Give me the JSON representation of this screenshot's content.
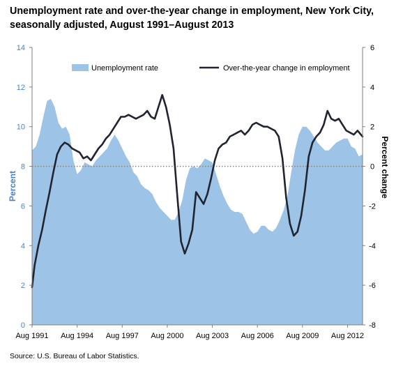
{
  "title_line1": "Unemployment rate and over-the-year change in employment, New York City,",
  "title_line2": "seasonally adjusted, August 1991–August 2013",
  "source": "Source: U.S. Bureau of Labor Statistics.",
  "colors": {
    "area": "#9dc3e6",
    "line": "#1f2430",
    "left_axis_text": "#4f81bd",
    "zero_line": "#7f7f7f"
  },
  "chart_data": {
    "type": "area",
    "title": "Unemployment rate and over-the-year change in employment, New York City, seasonally adjusted, August 1991–August 2013",
    "x_range": [
      "1991-08",
      "2013-08"
    ],
    "x_tick_labels": [
      "Aug 1991",
      "Aug 1994",
      "Aug 1997",
      "Aug 2000",
      "Aug 2003",
      "Aug 2006",
      "Aug 2009",
      "Aug 2012"
    ],
    "x_tick_dates": [
      "1991-08",
      "1994-08",
      "1997-08",
      "2000-08",
      "2003-08",
      "2006-08",
      "2009-08",
      "2012-08"
    ],
    "y_left": {
      "label": "Percent",
      "range": [
        0,
        14
      ],
      "ticks": [
        "0",
        "2",
        "4",
        "6",
        "8",
        "10",
        "12",
        "14"
      ]
    },
    "y_right": {
      "label": "Percent change",
      "range": [
        -8,
        6
      ],
      "ticks": [
        "-8",
        "-6",
        "-4",
        "-2",
        "0",
        "2",
        "4",
        "6"
      ]
    },
    "grid": false,
    "legend_position": "top",
    "reference_line": {
      "axis": "right",
      "value": 0,
      "style": "dotted"
    },
    "series": [
      {
        "name": "Unemployment rate",
        "type": "area",
        "axis": "left",
        "points": [
          [
            "1991-08",
            8.8
          ],
          [
            "1991-11",
            9.0
          ],
          [
            "1992-02",
            9.6
          ],
          [
            "1992-05",
            10.5
          ],
          [
            "1992-08",
            11.3
          ],
          [
            "1992-11",
            11.4
          ],
          [
            "1993-02",
            11.0
          ],
          [
            "1993-05",
            10.2
          ],
          [
            "1993-08",
            9.9
          ],
          [
            "1993-11",
            10.0
          ],
          [
            "1994-02",
            9.6
          ],
          [
            "1994-05",
            8.3
          ],
          [
            "1994-08",
            7.6
          ],
          [
            "1994-11",
            7.8
          ],
          [
            "1995-02",
            8.2
          ],
          [
            "1995-05",
            8.1
          ],
          [
            "1995-08",
            8.0
          ],
          [
            "1995-11",
            8.3
          ],
          [
            "1996-02",
            8.5
          ],
          [
            "1996-05",
            8.7
          ],
          [
            "1996-08",
            8.9
          ],
          [
            "1996-11",
            9.3
          ],
          [
            "1997-02",
            9.6
          ],
          [
            "1997-05",
            9.3
          ],
          [
            "1997-08",
            8.9
          ],
          [
            "1997-11",
            8.5
          ],
          [
            "1998-02",
            8.2
          ],
          [
            "1998-05",
            7.7
          ],
          [
            "1998-08",
            7.5
          ],
          [
            "1998-11",
            7.1
          ],
          [
            "1999-02",
            6.9
          ],
          [
            "1999-05",
            6.8
          ],
          [
            "1999-08",
            6.6
          ],
          [
            "1999-11",
            6.2
          ],
          [
            "2000-02",
            5.9
          ],
          [
            "2000-05",
            5.7
          ],
          [
            "2000-08",
            5.5
          ],
          [
            "2000-11",
            5.3
          ],
          [
            "2001-02",
            5.3
          ],
          [
            "2001-05",
            5.7
          ],
          [
            "2001-08",
            6.3
          ],
          [
            "2001-11",
            7.3
          ],
          [
            "2002-02",
            7.9
          ],
          [
            "2002-05",
            8.0
          ],
          [
            "2002-08",
            7.9
          ],
          [
            "2002-11",
            8.1
          ],
          [
            "2003-02",
            8.4
          ],
          [
            "2003-05",
            8.3
          ],
          [
            "2003-08",
            8.2
          ],
          [
            "2003-11",
            7.6
          ],
          [
            "2004-02",
            7.0
          ],
          [
            "2004-05",
            6.5
          ],
          [
            "2004-08",
            6.1
          ],
          [
            "2004-11",
            5.8
          ],
          [
            "2005-02",
            5.7
          ],
          [
            "2005-05",
            5.7
          ],
          [
            "2005-08",
            5.6
          ],
          [
            "2005-11",
            5.2
          ],
          [
            "2006-02",
            4.8
          ],
          [
            "2006-05",
            4.6
          ],
          [
            "2006-08",
            4.7
          ],
          [
            "2006-11",
            5.0
          ],
          [
            "2007-02",
            5.0
          ],
          [
            "2007-05",
            4.8
          ],
          [
            "2007-08",
            4.7
          ],
          [
            "2007-11",
            4.9
          ],
          [
            "2008-02",
            5.3
          ],
          [
            "2008-05",
            5.8
          ],
          [
            "2008-08",
            6.5
          ],
          [
            "2008-11",
            7.7
          ],
          [
            "2009-02",
            8.8
          ],
          [
            "2009-05",
            9.6
          ],
          [
            "2009-08",
            10.0
          ],
          [
            "2009-11",
            10.0
          ],
          [
            "2010-02",
            9.8
          ],
          [
            "2010-05",
            9.5
          ],
          [
            "2010-08",
            9.2
          ],
          [
            "2010-11",
            9.0
          ],
          [
            "2011-02",
            8.8
          ],
          [
            "2011-05",
            8.8
          ],
          [
            "2011-08",
            9.0
          ],
          [
            "2011-11",
            9.2
          ],
          [
            "2012-02",
            9.3
          ],
          [
            "2012-05",
            9.4
          ],
          [
            "2012-08",
            9.4
          ],
          [
            "2012-11",
            9.0
          ],
          [
            "2013-02",
            8.9
          ],
          [
            "2013-05",
            8.5
          ],
          [
            "2013-08",
            8.6
          ]
        ]
      },
      {
        "name": "Over-the-year change in employment",
        "type": "line",
        "axis": "right",
        "points": [
          [
            "1991-08",
            -6.1
          ],
          [
            "1991-10",
            -5.0
          ],
          [
            "1992-01",
            -4.0
          ],
          [
            "1992-04",
            -3.2
          ],
          [
            "1992-07",
            -2.2
          ],
          [
            "1992-10",
            -1.3
          ],
          [
            "1993-01",
            -0.3
          ],
          [
            "1993-04",
            0.6
          ],
          [
            "1993-07",
            1.0
          ],
          [
            "1993-10",
            1.2
          ],
          [
            "1994-01",
            1.1
          ],
          [
            "1994-04",
            0.9
          ],
          [
            "1994-07",
            0.8
          ],
          [
            "1994-10",
            0.7
          ],
          [
            "1995-01",
            0.4
          ],
          [
            "1995-04",
            0.5
          ],
          [
            "1995-07",
            0.3
          ],
          [
            "1995-10",
            0.6
          ],
          [
            "1996-01",
            0.9
          ],
          [
            "1996-04",
            1.1
          ],
          [
            "1996-07",
            1.4
          ],
          [
            "1996-10",
            1.6
          ],
          [
            "1997-01",
            1.9
          ],
          [
            "1997-04",
            2.2
          ],
          [
            "1997-07",
            2.5
          ],
          [
            "1997-10",
            2.5
          ],
          [
            "1998-01",
            2.6
          ],
          [
            "1998-04",
            2.5
          ],
          [
            "1998-07",
            2.4
          ],
          [
            "1998-10",
            2.5
          ],
          [
            "1999-01",
            2.6
          ],
          [
            "1999-04",
            2.8
          ],
          [
            "1999-07",
            2.5
          ],
          [
            "1999-10",
            2.4
          ],
          [
            "2000-01",
            3.0
          ],
          [
            "2000-04",
            3.6
          ],
          [
            "2000-07",
            3.0
          ],
          [
            "2000-10",
            2.1
          ],
          [
            "2001-01",
            0.9
          ],
          [
            "2001-04",
            -1.5
          ],
          [
            "2001-07",
            -3.8
          ],
          [
            "2001-10",
            -4.4
          ],
          [
            "2002-01",
            -3.9
          ],
          [
            "2002-04",
            -3.2
          ],
          [
            "2002-07",
            -1.3
          ],
          [
            "2002-10",
            -1.6
          ],
          [
            "2003-01",
            -1.9
          ],
          [
            "2003-04",
            -1.4
          ],
          [
            "2003-07",
            -0.6
          ],
          [
            "2003-10",
            0.3
          ],
          [
            "2004-01",
            0.9
          ],
          [
            "2004-04",
            1.1
          ],
          [
            "2004-07",
            1.2
          ],
          [
            "2004-10",
            1.5
          ],
          [
            "2005-01",
            1.6
          ],
          [
            "2005-04",
            1.7
          ],
          [
            "2005-07",
            1.8
          ],
          [
            "2005-10",
            1.6
          ],
          [
            "2006-01",
            1.8
          ],
          [
            "2006-04",
            2.1
          ],
          [
            "2006-07",
            2.2
          ],
          [
            "2006-10",
            2.1
          ],
          [
            "2007-01",
            2.0
          ],
          [
            "2007-04",
            2.0
          ],
          [
            "2007-07",
            1.9
          ],
          [
            "2007-10",
            1.8
          ],
          [
            "2008-01",
            1.5
          ],
          [
            "2008-04",
            0.4
          ],
          [
            "2008-07",
            -1.6
          ],
          [
            "2008-10",
            -2.9
          ],
          [
            "2009-01",
            -3.5
          ],
          [
            "2009-04",
            -3.3
          ],
          [
            "2009-07",
            -2.5
          ],
          [
            "2009-10",
            -1.2
          ],
          [
            "2010-01",
            0.5
          ],
          [
            "2010-04",
            1.2
          ],
          [
            "2010-07",
            1.5
          ],
          [
            "2010-10",
            1.7
          ],
          [
            "2011-01",
            2.1
          ],
          [
            "2011-04",
            2.8
          ],
          [
            "2011-07",
            2.4
          ],
          [
            "2011-10",
            2.3
          ],
          [
            "2012-01",
            2.4
          ],
          [
            "2012-04",
            2.1
          ],
          [
            "2012-07",
            1.8
          ],
          [
            "2012-10",
            1.7
          ],
          [
            "2013-01",
            1.6
          ],
          [
            "2013-04",
            1.8
          ],
          [
            "2013-08",
            1.5
          ]
        ]
      }
    ]
  }
}
